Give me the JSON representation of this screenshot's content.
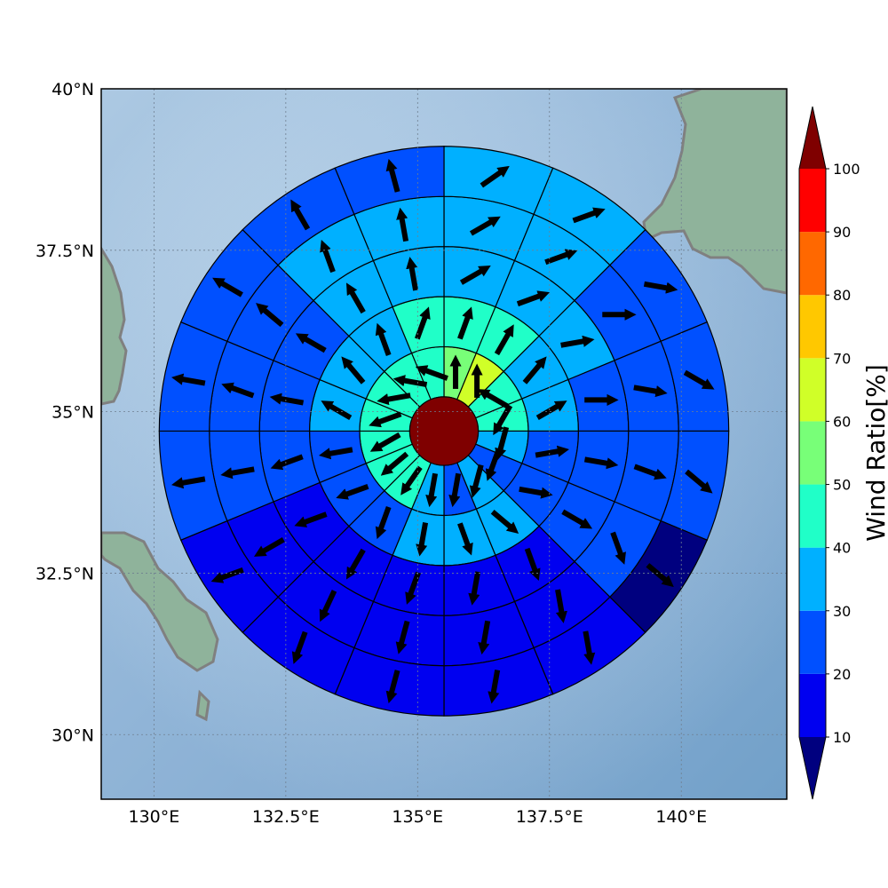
{
  "map": {
    "lon_range": [
      129.0,
      142.0
    ],
    "lat_range": [
      29.0,
      40.0
    ],
    "x_ticks": [
      {
        "lon": 130.0,
        "label": "130°E"
      },
      {
        "lon": 132.5,
        "label": "132.5°E"
      },
      {
        "lon": 135.0,
        "label": "135°E"
      },
      {
        "lon": 137.5,
        "label": "137.5°E"
      },
      {
        "lon": 140.0,
        "label": "140°E"
      }
    ],
    "y_ticks": [
      {
        "lat": 30.0,
        "label": "30°N"
      },
      {
        "lat": 32.5,
        "label": "32.5°N"
      },
      {
        "lat": 35.0,
        "label": "35°N"
      },
      {
        "lat": 37.5,
        "label": "37.5°N"
      },
      {
        "lat": 40.0,
        "label": "40°N"
      }
    ],
    "grid": true,
    "center": {
      "lon": 135.5,
      "lat": 34.7,
      "value": 100
    },
    "ring_radii_deg": [
      0.65,
      1.6,
      2.55,
      3.5,
      4.45,
      5.4
    ],
    "sector_count": 16,
    "sector_start_deg": 90,
    "sector_direction": "clockwise",
    "rings": [
      {
        "values": [
          50,
          60,
          40,
          40,
          30,
          25,
          30,
          25,
          30,
          40,
          40,
          40,
          40,
          40,
          40,
          40
        ],
        "arrows_deg": [
          0,
          0,
          300,
          210,
          195,
          200,
          195,
          190,
          190,
          215,
          230,
          240,
          250,
          260,
          280,
          290
        ]
      },
      {
        "values": [
          40,
          40,
          30,
          30,
          25,
          25,
          30,
          30,
          30,
          25,
          25,
          25,
          30,
          30,
          30,
          40
        ],
        "arrows_deg": [
          20,
          30,
          40,
          60,
          80,
          100,
          130,
          160,
          190,
          200,
          250,
          260,
          300,
          320,
          340,
          20
        ]
      },
      {
        "values": [
          30,
          30,
          30,
          25,
          25,
          25,
          15,
          15,
          15,
          15,
          15,
          25,
          25,
          25,
          30,
          30
        ],
        "arrows_deg": [
          60,
          70,
          80,
          90,
          100,
          120,
          160,
          190,
          200,
          210,
          250,
          250,
          280,
          300,
          330,
          350
        ]
      },
      {
        "values": [
          30,
          30,
          25,
          25,
          25,
          20,
          15,
          15,
          15,
          15,
          15,
          25,
          25,
          25,
          30,
          30
        ],
        "arrows_deg": [
          60,
          70,
          90,
          100,
          110,
          160,
          170,
          190,
          195,
          205,
          240,
          260,
          290,
          310,
          340,
          350
        ]
      },
      {
        "values": [
          30,
          30,
          25,
          25,
          25,
          5,
          15,
          15,
          15,
          15,
          15,
          25,
          25,
          25,
          25,
          25
        ],
        "arrows_deg": [
          55,
          70,
          100,
          120,
          130,
          130,
          170,
          190,
          195,
          200,
          250,
          260,
          280,
          300,
          330,
          345
        ]
      }
    ],
    "colors": {
      "ocean_light": "#dbe8f2",
      "ocean_dark": "#78a6cc",
      "land": "#8fb39b",
      "coast": "#808080",
      "grid": "#6f7f90"
    }
  },
  "colorbar": {
    "title": "Wind Ratio[%]",
    "ticks": [
      "10",
      "20",
      "30",
      "40",
      "50",
      "60",
      "70",
      "80",
      "90",
      "100"
    ],
    "bins": [
      {
        "from": 10,
        "to": 20,
        "color": "#0000f0"
      },
      {
        "from": 20,
        "to": 30,
        "color": "#0050ff"
      },
      {
        "from": 30,
        "to": 40,
        "color": "#00b0ff"
      },
      {
        "from": 40,
        "to": 50,
        "color": "#20ffc8"
      },
      {
        "from": 50,
        "to": 60,
        "color": "#78ff78"
      },
      {
        "from": 60,
        "to": 70,
        "color": "#d0ff28"
      },
      {
        "from": 70,
        "to": 80,
        "color": "#ffc800"
      },
      {
        "from": 80,
        "to": 90,
        "color": "#ff6800"
      },
      {
        "from": 90,
        "to": 100,
        "color": "#ff0000"
      }
    ],
    "under_color": "#00007f",
    "over_color": "#7f0000"
  }
}
